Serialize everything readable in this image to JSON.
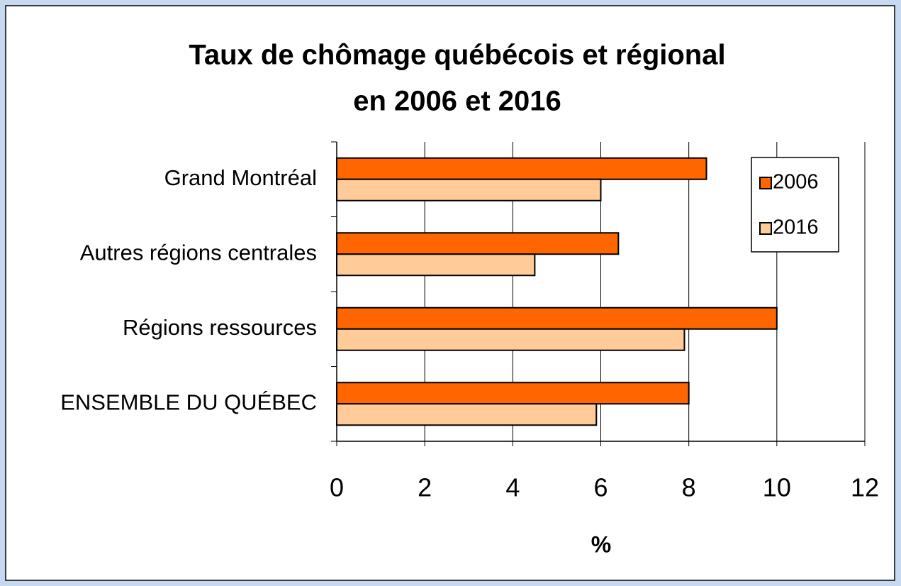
{
  "chart_data": {
    "type": "barh",
    "title": [
      "Taux de chômage québécois et régional",
      "en 2006 et 2016"
    ],
    "x_label": "%",
    "categories": [
      "Grand Montréal",
      "Autres régions centrales",
      "Régions ressources",
      "ENSEMBLE DU QUÉBEC"
    ],
    "series": [
      {
        "name": "2006",
        "color": "#ff6600",
        "values": [
          8.4,
          6.4,
          10.0,
          8.0
        ]
      },
      {
        "name": "2016",
        "color": "#ffcc99",
        "values": [
          6.0,
          4.5,
          7.9,
          5.9
        ]
      }
    ],
    "xlim": [
      0,
      12
    ],
    "xticks": [
      0,
      2,
      4,
      6,
      8,
      10,
      12
    ],
    "grid": true,
    "legend": "upper right"
  }
}
